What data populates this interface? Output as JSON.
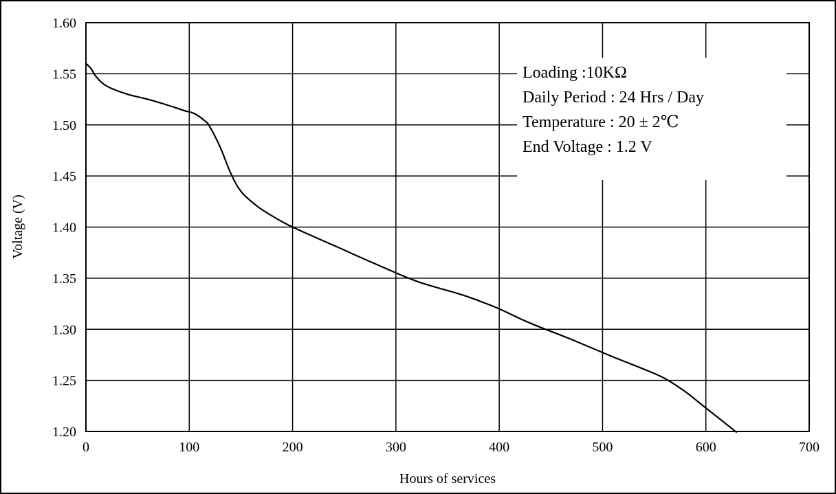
{
  "chart_data": {
    "type": "line",
    "title": "",
    "xlabel": "Hours of services",
    "ylabel": "Voltage (V)",
    "xlim": [
      0,
      700
    ],
    "ylim": [
      1.2,
      1.6
    ],
    "x_ticks": [
      "0",
      "100",
      "200",
      "300",
      "400",
      "500",
      "600",
      "700"
    ],
    "y_ticks": [
      "1.20",
      "1.25",
      "1.30",
      "1.35",
      "1.40",
      "1.45",
      "1.50",
      "1.55",
      "1.60"
    ],
    "grid": true,
    "annotations": [
      "Loading :10KΩ",
      "Daily Period : 24 Hrs / Day",
      "Temperature : 20 ± 2℃",
      "End Voltage :  1.2 V"
    ],
    "series": [
      {
        "x": [
          0,
          5,
          10,
          20,
          40,
          60,
          80,
          95,
          105,
          115,
          120,
          130,
          140,
          150,
          165,
          180,
          200,
          240,
          280,
          320,
          360,
          380,
          400,
          430,
          470,
          510,
          540,
          560,
          580,
          600,
          620,
          630
        ],
        "y": [
          1.56,
          1.555,
          1.547,
          1.538,
          1.53,
          1.525,
          1.519,
          1.514,
          1.511,
          1.504,
          1.498,
          1.478,
          1.453,
          1.435,
          1.421,
          1.411,
          1.4,
          1.382,
          1.364,
          1.347,
          1.335,
          1.328,
          1.32,
          1.306,
          1.29,
          1.273,
          1.261,
          1.252,
          1.239,
          1.223,
          1.207,
          1.199
        ]
      }
    ],
    "colors": {
      "line": "#000000",
      "grid": "#000000",
      "background": "#ffffff"
    }
  }
}
